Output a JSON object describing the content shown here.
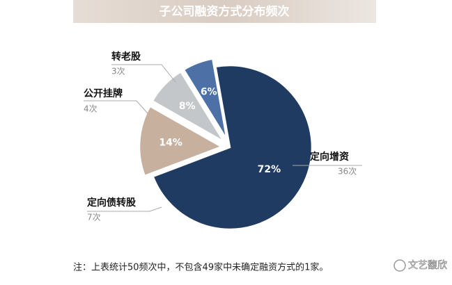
{
  "chart_data": {
    "type": "pie",
    "title": "子公司融资方式分布频次",
    "categories": [
      "定向增资",
      "定向债转股",
      "公开挂牌",
      "转老股"
    ],
    "values": [
      72,
      14,
      8,
      6
    ],
    "value_labels": [
      "72%",
      "14%",
      "8%",
      "6%"
    ],
    "count_labels": [
      "36次",
      "7次",
      "4次",
      "3次"
    ],
    "colors": [
      "#1f3b61",
      "#c8b09e",
      "#c3c7ca",
      "#4d70a6"
    ],
    "note": "注：上表统计50频次中，不包含49家中未确定融资方式的1家。",
    "watermark": "文艺馥欣"
  }
}
